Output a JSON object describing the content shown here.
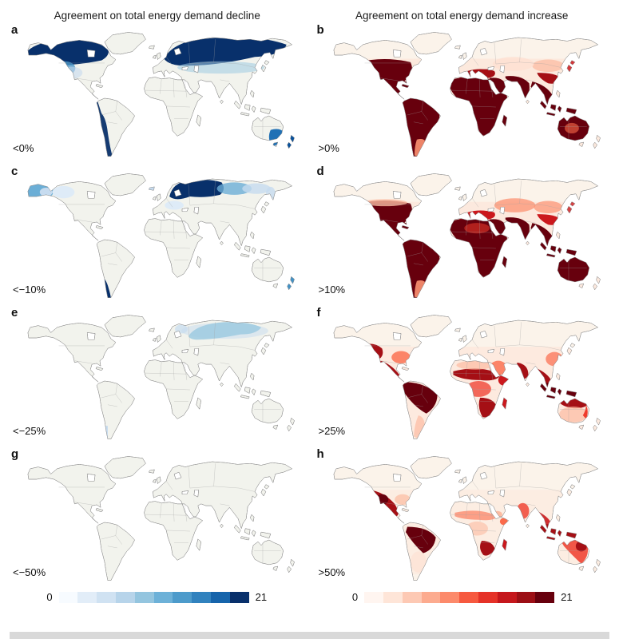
{
  "figure": {
    "column_titles": {
      "left": "Agreement on total energy demand decline",
      "right": "Agreement on total energy demand increase"
    },
    "panels": [
      {
        "letter": "a",
        "threshold": "<0%"
      },
      {
        "letter": "b",
        "threshold": ">0%"
      },
      {
        "letter": "c",
        "threshold": "<−10%"
      },
      {
        "letter": "d",
        "threshold": ">10%"
      },
      {
        "letter": "e",
        "threshold": "<−25%"
      },
      {
        "letter": "f",
        "threshold": ">25%"
      },
      {
        "letter": "g",
        "threshold": "<−50%"
      },
      {
        "letter": "h",
        "threshold": ">50%"
      }
    ],
    "colorbars": [
      {
        "side": "left",
        "min_label": "0",
        "max_label": "21",
        "palette": "Blues",
        "colors": [
          "#f7fbff",
          "#e2edf8",
          "#d0e2f2",
          "#b7d4ea",
          "#94c5df",
          "#6db1d8",
          "#4d9bcb",
          "#3182be",
          "#1664ab",
          "#08306b"
        ]
      },
      {
        "side": "right",
        "min_label": "0",
        "max_label": "21",
        "palette": "Reds",
        "colors": [
          "#fff5f0",
          "#fee5d8",
          "#fdc9b4",
          "#fcab8f",
          "#fc8a6b",
          "#f6593f",
          "#e53228",
          "#c5171c",
          "#9c0f15",
          "#67000d"
        ]
      }
    ]
  },
  "chart_data": {
    "type": "heatmap",
    "subtype": "choropleth_world_maps",
    "title": "Agreement on total energy demand change",
    "columns": [
      "Agreement on total energy demand decline",
      "Agreement on total energy demand increase"
    ],
    "scale": {
      "min": 0,
      "max": 21
    },
    "legend_position": "bottom",
    "panels": [
      {
        "panel": "a",
        "column": "decline",
        "threshold": "<0%",
        "high_agreement_regions": [
          "Canada",
          "northern United States",
          "northern and eastern Europe",
          "Russia",
          "Chile and Andes",
          "southeastern Australia",
          "New Zealand"
        ]
      },
      {
        "panel": "b",
        "column": "increase",
        "threshold": ">0%",
        "high_agreement_regions": [
          "southern United States",
          "Mexico",
          "Central America",
          "South America",
          "Africa",
          "southern Europe",
          "Middle East",
          "South Asia",
          "Southeast Asia",
          "Indonesia",
          "Australia"
        ]
      },
      {
        "panel": "c",
        "column": "decline",
        "threshold": "<−10%",
        "high_agreement_regions": [
          "Alaska",
          "northwestern Canada",
          "Scandinavia",
          "northwestern Russia",
          "southern Chile",
          "New Zealand"
        ]
      },
      {
        "panel": "d",
        "column": "increase",
        "threshold": ">10%",
        "high_agreement_regions": [
          "southern United States",
          "Mexico",
          "South America",
          "Africa",
          "Middle East",
          "India",
          "Southeast Asia",
          "Australia",
          "central Asia (moderate)"
        ]
      },
      {
        "panel": "e",
        "column": "decline",
        "threshold": "<−25%",
        "high_agreement_regions": [
          "northern Siberia (moderate)",
          "Scandinavia (low)"
        ]
      },
      {
        "panel": "f",
        "column": "increase",
        "threshold": ">25%",
        "high_agreement_regions": [
          "western United States",
          "Mexico",
          "northern South America",
          "Sahel",
          "southern Africa",
          "India",
          "Southeast Asia",
          "Indonesia",
          "northern Australia"
        ]
      },
      {
        "panel": "g",
        "column": "decline",
        "threshold": "<−50%",
        "high_agreement_regions": []
      },
      {
        "panel": "h",
        "column": "increase",
        "threshold": ">50%",
        "high_agreement_regions": [
          "southwestern United States",
          "Mexico",
          "Brazil and Amazon",
          "southern Africa",
          "India (moderate)",
          "Indonesia",
          "northern and eastern Australia"
        ]
      }
    ]
  }
}
